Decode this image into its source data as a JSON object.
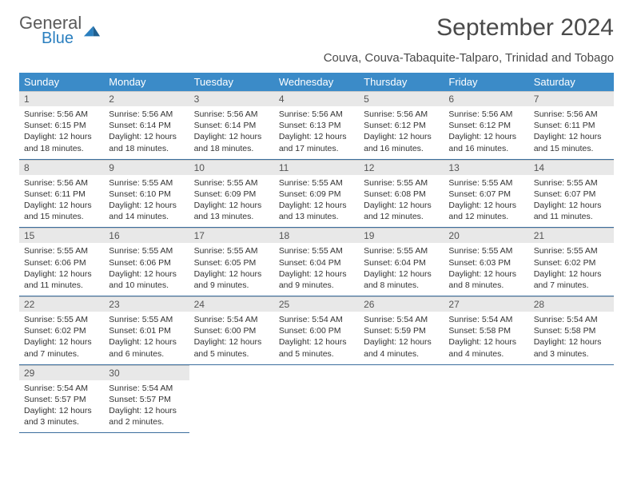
{
  "logo": {
    "line1": "General",
    "line2": "Blue"
  },
  "title": "September 2024",
  "subtitle": "Couva, Couva-Tabaquite-Talparo, Trinidad and Tobago",
  "headers": [
    "Sunday",
    "Monday",
    "Tuesday",
    "Wednesday",
    "Thursday",
    "Friday",
    "Saturday"
  ],
  "weeks": [
    [
      {
        "n": "1",
        "sr": "5:56 AM",
        "ss": "6:15 PM",
        "dl": "12 hours and 18 minutes."
      },
      {
        "n": "2",
        "sr": "5:56 AM",
        "ss": "6:14 PM",
        "dl": "12 hours and 18 minutes."
      },
      {
        "n": "3",
        "sr": "5:56 AM",
        "ss": "6:14 PM",
        "dl": "12 hours and 18 minutes."
      },
      {
        "n": "4",
        "sr": "5:56 AM",
        "ss": "6:13 PM",
        "dl": "12 hours and 17 minutes."
      },
      {
        "n": "5",
        "sr": "5:56 AM",
        "ss": "6:12 PM",
        "dl": "12 hours and 16 minutes."
      },
      {
        "n": "6",
        "sr": "5:56 AM",
        "ss": "6:12 PM",
        "dl": "12 hours and 16 minutes."
      },
      {
        "n": "7",
        "sr": "5:56 AM",
        "ss": "6:11 PM",
        "dl": "12 hours and 15 minutes."
      }
    ],
    [
      {
        "n": "8",
        "sr": "5:56 AM",
        "ss": "6:11 PM",
        "dl": "12 hours and 15 minutes."
      },
      {
        "n": "9",
        "sr": "5:55 AM",
        "ss": "6:10 PM",
        "dl": "12 hours and 14 minutes."
      },
      {
        "n": "10",
        "sr": "5:55 AM",
        "ss": "6:09 PM",
        "dl": "12 hours and 13 minutes."
      },
      {
        "n": "11",
        "sr": "5:55 AM",
        "ss": "6:09 PM",
        "dl": "12 hours and 13 minutes."
      },
      {
        "n": "12",
        "sr": "5:55 AM",
        "ss": "6:08 PM",
        "dl": "12 hours and 12 minutes."
      },
      {
        "n": "13",
        "sr": "5:55 AM",
        "ss": "6:07 PM",
        "dl": "12 hours and 12 minutes."
      },
      {
        "n": "14",
        "sr": "5:55 AM",
        "ss": "6:07 PM",
        "dl": "12 hours and 11 minutes."
      }
    ],
    [
      {
        "n": "15",
        "sr": "5:55 AM",
        "ss": "6:06 PM",
        "dl": "12 hours and 11 minutes."
      },
      {
        "n": "16",
        "sr": "5:55 AM",
        "ss": "6:06 PM",
        "dl": "12 hours and 10 minutes."
      },
      {
        "n": "17",
        "sr": "5:55 AM",
        "ss": "6:05 PM",
        "dl": "12 hours and 9 minutes."
      },
      {
        "n": "18",
        "sr": "5:55 AM",
        "ss": "6:04 PM",
        "dl": "12 hours and 9 minutes."
      },
      {
        "n": "19",
        "sr": "5:55 AM",
        "ss": "6:04 PM",
        "dl": "12 hours and 8 minutes."
      },
      {
        "n": "20",
        "sr": "5:55 AM",
        "ss": "6:03 PM",
        "dl": "12 hours and 8 minutes."
      },
      {
        "n": "21",
        "sr": "5:55 AM",
        "ss": "6:02 PM",
        "dl": "12 hours and 7 minutes."
      }
    ],
    [
      {
        "n": "22",
        "sr": "5:55 AM",
        "ss": "6:02 PM",
        "dl": "12 hours and 7 minutes."
      },
      {
        "n": "23",
        "sr": "5:55 AM",
        "ss": "6:01 PM",
        "dl": "12 hours and 6 minutes."
      },
      {
        "n": "24",
        "sr": "5:54 AM",
        "ss": "6:00 PM",
        "dl": "12 hours and 5 minutes."
      },
      {
        "n": "25",
        "sr": "5:54 AM",
        "ss": "6:00 PM",
        "dl": "12 hours and 5 minutes."
      },
      {
        "n": "26",
        "sr": "5:54 AM",
        "ss": "5:59 PM",
        "dl": "12 hours and 4 minutes."
      },
      {
        "n": "27",
        "sr": "5:54 AM",
        "ss": "5:58 PM",
        "dl": "12 hours and 4 minutes."
      },
      {
        "n": "28",
        "sr": "5:54 AM",
        "ss": "5:58 PM",
        "dl": "12 hours and 3 minutes."
      }
    ],
    [
      {
        "n": "29",
        "sr": "5:54 AM",
        "ss": "5:57 PM",
        "dl": "12 hours and 3 minutes."
      },
      {
        "n": "30",
        "sr": "5:54 AM",
        "ss": "5:57 PM",
        "dl": "12 hours and 2 minutes."
      },
      null,
      null,
      null,
      null,
      null
    ]
  ],
  "labels": {
    "sunrise": "Sunrise: ",
    "sunset": "Sunset: ",
    "daylight": "Daylight: "
  },
  "colors": {
    "header_bg": "#3b8bc8",
    "header_fg": "#ffffff",
    "daynum_bg": "#e8e8e8",
    "row_border": "#3b6e9e",
    "logo_gray": "#5a5a5a",
    "logo_blue": "#2a7fbf"
  }
}
